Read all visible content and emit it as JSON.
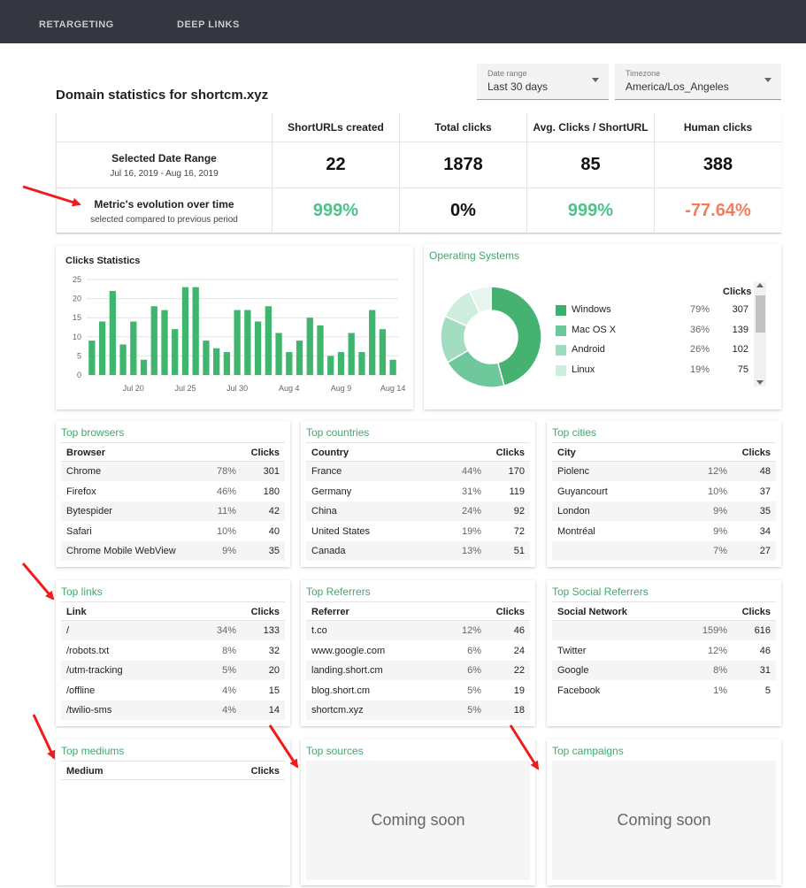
{
  "nav": [
    "RETARGETING",
    "DEEP LINKS"
  ],
  "page_title": "Domain statistics for shortcm.xyz",
  "date_range": {
    "label": "Date range",
    "value": "Last 30 days"
  },
  "timezone": {
    "label": "Timezone",
    "value": "America/Los_Angeles"
  },
  "summary": {
    "headers": [
      "ShortURLs created",
      "Total clicks",
      "Avg. Clicks / ShortURL",
      "Human clicks"
    ],
    "row1": {
      "title": "Selected Date Range",
      "sub": "Jul 16, 2019 - Aug 16, 2019",
      "values": [
        "22",
        "1878",
        "85",
        "388"
      ]
    },
    "row2": {
      "title": "Metric's evolution over time",
      "sub": "selected compared to previous period",
      "values": [
        "999%",
        "0%",
        "999%",
        "-77.64%"
      ]
    }
  },
  "colors": {
    "green": "#4cc48a",
    "red": "#ef7e5f",
    "accent": "#3fa96b",
    "bar": "#3fb56e",
    "arrow": "#ee1c1c"
  },
  "clicks_stats": {
    "title": "Clicks Statistics",
    "x_ticks": [
      "Jul 20",
      "Jul 25",
      "Jul 30",
      "Aug 4",
      "Aug 9",
      "Aug 14"
    ],
    "chart_data": {
      "type": "bar",
      "title": "Clicks Statistics",
      "ylim": [
        0,
        25
      ],
      "y_ticks": [
        0,
        5,
        10,
        15,
        20,
        25
      ],
      "x_tick_labels": [
        "Jul 20",
        "Jul 25",
        "Jul 30",
        "Aug 4",
        "Aug 9",
        "Aug 14"
      ],
      "values": [
        9,
        14,
        22,
        8,
        14,
        4,
        18,
        17,
        12,
        23,
        23,
        9,
        7,
        6,
        17,
        17,
        14,
        18,
        11,
        6,
        9,
        15,
        13,
        5,
        6,
        11,
        6,
        17,
        12,
        4
      ]
    }
  },
  "os": {
    "title": "Operating Systems",
    "clicks_header": "Clicks",
    "rows": [
      {
        "name": "Windows",
        "pct": "79%",
        "clicks": "307",
        "color": "#3fae72"
      },
      {
        "name": "Mac OS X",
        "pct": "36%",
        "clicks": "139",
        "color": "#6cc79b"
      },
      {
        "name": "Android",
        "pct": "26%",
        "clicks": "102",
        "color": "#9fdcbf"
      },
      {
        "name": "Linux",
        "pct": "19%",
        "clicks": "75",
        "color": "#cdeedd"
      }
    ],
    "chart_data": {
      "type": "pie",
      "labels": [
        "Windows",
        "Mac OS X",
        "Android",
        "Linux",
        "Other"
      ],
      "values": [
        307,
        139,
        102,
        75,
        47
      ]
    }
  },
  "tables": [
    {
      "title": "Top browsers",
      "col": "Browser",
      "clicks": "Clicks",
      "rows": [
        {
          "name": "Chrome",
          "pct": "78%",
          "clicks": "301"
        },
        {
          "name": "Firefox",
          "pct": "46%",
          "clicks": "180"
        },
        {
          "name": "Bytespider",
          "pct": "11%",
          "clicks": "42"
        },
        {
          "name": "Safari",
          "pct": "10%",
          "clicks": "40"
        },
        {
          "name": "Chrome Mobile WebView",
          "pct": "9%",
          "clicks": "35"
        }
      ]
    },
    {
      "title": "Top countries",
      "col": "Country",
      "clicks": "Clicks",
      "rows": [
        {
          "name": "France",
          "pct": "44%",
          "clicks": "170"
        },
        {
          "name": "Germany",
          "pct": "31%",
          "clicks": "119"
        },
        {
          "name": "China",
          "pct": "24%",
          "clicks": "92"
        },
        {
          "name": "United States",
          "pct": "19%",
          "clicks": "72"
        },
        {
          "name": "Canada",
          "pct": "13%",
          "clicks": "51"
        }
      ]
    },
    {
      "title": "Top cities",
      "col": "City",
      "clicks": "Clicks",
      "rows": [
        {
          "name": "Piolenc",
          "pct": "12%",
          "clicks": "48"
        },
        {
          "name": "Guyancourt",
          "pct": "10%",
          "clicks": "37"
        },
        {
          "name": "London",
          "pct": "9%",
          "clicks": "35"
        },
        {
          "name": "Montréal",
          "pct": "9%",
          "clicks": "34"
        },
        {
          "name": "",
          "pct": "7%",
          "clicks": "27"
        }
      ]
    },
    {
      "title": "Top links",
      "col": "Link",
      "clicks": "Clicks",
      "rows": [
        {
          "name": "/",
          "pct": "34%",
          "clicks": "133"
        },
        {
          "name": "/robots.txt",
          "pct": "8%",
          "clicks": "32"
        },
        {
          "name": "/utm-tracking",
          "pct": "5%",
          "clicks": "20"
        },
        {
          "name": "/offline",
          "pct": "4%",
          "clicks": "15"
        },
        {
          "name": "/twilio-sms",
          "pct": "4%",
          "clicks": "14"
        }
      ]
    },
    {
      "title": "Top Referrers",
      "col": "Referrer",
      "clicks": "Clicks",
      "rows": [
        {
          "name": "t.co",
          "pct": "12%",
          "clicks": "46"
        },
        {
          "name": "www.google.com",
          "pct": "6%",
          "clicks": "24"
        },
        {
          "name": "landing.short.cm",
          "pct": "6%",
          "clicks": "22"
        },
        {
          "name": "blog.short.cm",
          "pct": "5%",
          "clicks": "19"
        },
        {
          "name": "shortcm.xyz",
          "pct": "5%",
          "clicks": "18"
        }
      ]
    },
    {
      "title": "Top Social Referrers",
      "col": "Social Network",
      "clicks": "Clicks",
      "rows": [
        {
          "name": "",
          "pct": "159%",
          "clicks": "616"
        },
        {
          "name": "Twitter",
          "pct": "12%",
          "clicks": "46"
        },
        {
          "name": "Google",
          "pct": "8%",
          "clicks": "31"
        },
        {
          "name": "Facebook",
          "pct": "1%",
          "clicks": "5"
        }
      ]
    }
  ],
  "mediums": {
    "title": "Top mediums",
    "col": "Medium",
    "clicks": "Clicks"
  },
  "sources": {
    "title": "Top sources",
    "text": "Coming soon"
  },
  "campaigns": {
    "title": "Top campaigns",
    "text": "Coming soon"
  }
}
